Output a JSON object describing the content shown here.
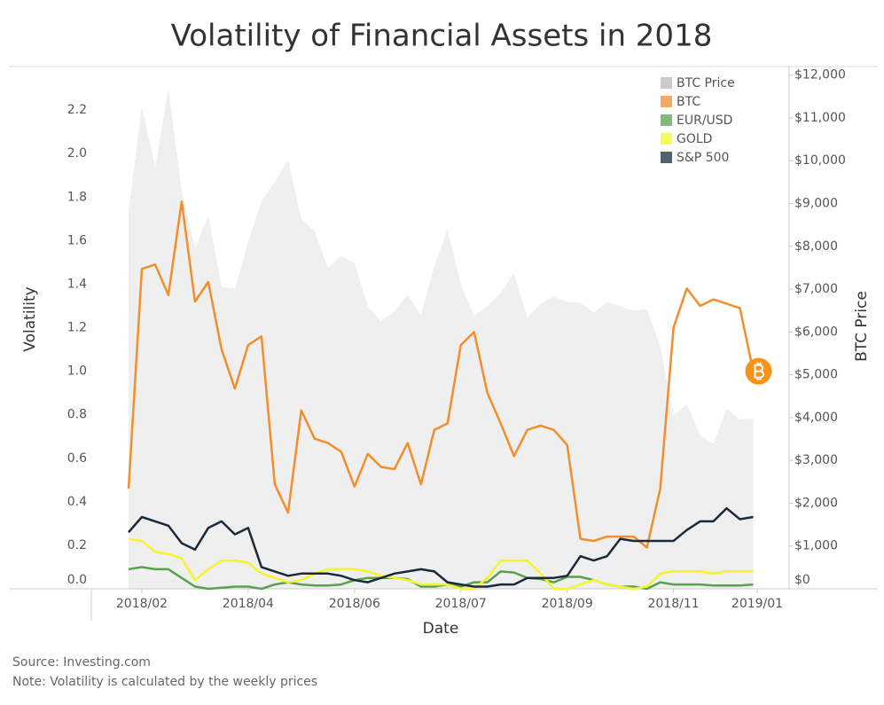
{
  "chart_data": {
    "type": "line",
    "title": "Volatility of Financial Assets in 2018",
    "x_label": "Date",
    "y_label": "Volatility",
    "y2_label": "BTC Price",
    "source": "Source: Investing.com",
    "note": "Note: Volatility is calculated by the weekly prices",
    "x": [
      0,
      1,
      2,
      3,
      4,
      5,
      6,
      7,
      8,
      9,
      10,
      11,
      12,
      13,
      14,
      15,
      16,
      17,
      18,
      19,
      20,
      21,
      22,
      23,
      24,
      25,
      26,
      27,
      28,
      29,
      30,
      31,
      32,
      33,
      34,
      35,
      36,
      37,
      38,
      39,
      40,
      41,
      42,
      43,
      44,
      45,
      46,
      47
    ],
    "xlim": [
      -2.8,
      49.7
    ],
    "xticks": [
      {
        "value": 1,
        "label": "2018/02"
      },
      {
        "value": 9,
        "label": "2018/04"
      },
      {
        "value": 17,
        "label": "2018/06"
      },
      {
        "value": 25,
        "label": "2018/07"
      },
      {
        "value": 33,
        "label": "2018/09"
      },
      {
        "value": 41,
        "label": "2018/11"
      },
      {
        "value": 47.3,
        "label": "2019/01"
      }
    ],
    "ylim": [
      0,
      2.4
    ],
    "yticks": [
      {
        "value": 0,
        "label": "0.0"
      },
      0.2,
      0.4,
      0.6,
      0.8,
      {
        "value": 1,
        "label": "1.0"
      },
      1.2,
      1.4,
      1.6,
      1.8,
      {
        "value": 2,
        "label": "2.0"
      },
      2.2
    ],
    "y2lim": [
      0,
      12200
    ],
    "y2ticks": [
      {
        "value": 0,
        "label": "$0"
      },
      {
        "value": 1000,
        "label": "$1,000"
      },
      {
        "value": 2000,
        "label": "$2,000"
      },
      {
        "value": 3000,
        "label": "$3,000"
      },
      {
        "value": 4000,
        "label": "$4,000"
      },
      {
        "value": 5000,
        "label": "$5,000"
      },
      {
        "value": 6000,
        "label": "$6,000"
      },
      {
        "value": 7000,
        "label": "$7,000"
      },
      {
        "value": 8000,
        "label": "$8,000"
      },
      {
        "value": 9000,
        "label": "$9,000"
      },
      {
        "value": 10000,
        "label": "$10,000"
      },
      {
        "value": 11000,
        "label": "$11,000"
      },
      {
        "value": 12000,
        "label": "$12,000"
      }
    ],
    "legend": "top-right",
    "series": [
      {
        "name": "BTC Price",
        "color": "#b8b8b8",
        "axis": "y2",
        "kind": "area",
        "values": [
          8800,
          11270,
          9850,
          11680,
          9300,
          7950,
          8710,
          7050,
          7010,
          8110,
          9050,
          9500,
          10020,
          8630,
          8360,
          7490,
          7780,
          7610,
          6600,
          6240,
          6490,
          6870,
          6390,
          7530,
          8400,
          7120,
          6370,
          6600,
          6910,
          7370,
          6330,
          6660,
          6830,
          6700,
          6680,
          6450,
          6700,
          6600,
          6490,
          6530,
          5660,
          4050,
          4320,
          3590,
          3380,
          4210,
          3960,
          3980
        ]
      },
      {
        "name": "BTC",
        "color": "#f28e2b",
        "values": [
          0.46,
          1.47,
          1.49,
          1.35,
          1.78,
          1.32,
          1.41,
          1.1,
          0.92,
          1.12,
          1.16,
          0.48,
          0.35,
          0.82,
          0.69,
          0.67,
          0.63,
          0.47,
          0.62,
          0.56,
          0.55,
          0.67,
          0.48,
          0.73,
          0.76,
          1.12,
          1.18,
          0.9,
          0.76,
          0.61,
          0.73,
          0.75,
          0.73,
          0.66,
          0.23,
          0.22,
          0.24,
          0.24,
          0.24,
          0.19,
          0.46,
          1.2,
          1.38,
          1.3,
          1.33,
          1.31,
          1.29,
          1.0
        ]
      },
      {
        "name": "EUR/USD",
        "color": "#59a14f",
        "values": [
          0.09,
          0.1,
          0.09,
          0.09,
          0.05,
          0.01,
          0.0,
          0.005,
          0.01,
          0.01,
          0.0,
          0.02,
          0.03,
          0.02,
          0.015,
          0.015,
          0.02,
          0.04,
          0.05,
          0.05,
          0.05,
          0.045,
          0.01,
          0.01,
          0.02,
          0.01,
          0.03,
          0.03,
          0.08,
          0.075,
          0.05,
          0.045,
          0.03,
          0.055,
          0.055,
          0.04,
          0.02,
          0.01,
          0.01,
          0.0,
          0.03,
          0.02,
          0.02,
          0.02,
          0.015,
          0.015,
          0.015,
          0.02
        ]
      },
      {
        "name": "GOLD",
        "color": "#f5f52a",
        "values": [
          0.23,
          0.22,
          0.17,
          0.16,
          0.14,
          0.04,
          0.09,
          0.13,
          0.13,
          0.12,
          0.07,
          0.05,
          0.03,
          0.04,
          0.07,
          0.09,
          0.09,
          0.09,
          0.08,
          0.06,
          0.05,
          0.04,
          0.02,
          0.02,
          0.02,
          0.0,
          0.0,
          0.05,
          0.13,
          0.13,
          0.13,
          0.07,
          0.0,
          0.0,
          0.02,
          0.04,
          0.02,
          0.01,
          0.0,
          0.01,
          0.07,
          0.08,
          0.08,
          0.08,
          0.07,
          0.08,
          0.08,
          0.08
        ]
      },
      {
        "name": "S&P 500",
        "color": "#1b2a3a",
        "values": [
          0.26,
          0.33,
          0.31,
          0.29,
          0.21,
          0.18,
          0.28,
          0.31,
          0.25,
          0.28,
          0.1,
          0.08,
          0.06,
          0.07,
          0.07,
          0.07,
          0.06,
          0.04,
          0.03,
          0.05,
          0.07,
          0.08,
          0.09,
          0.08,
          0.03,
          0.02,
          0.01,
          0.01,
          0.02,
          0.02,
          0.05,
          0.05,
          0.05,
          0.06,
          0.15,
          0.13,
          0.15,
          0.23,
          0.22,
          0.22,
          0.22,
          0.22,
          0.27,
          0.31,
          0.31,
          0.37,
          0.32,
          0.33
        ]
      }
    ]
  }
}
